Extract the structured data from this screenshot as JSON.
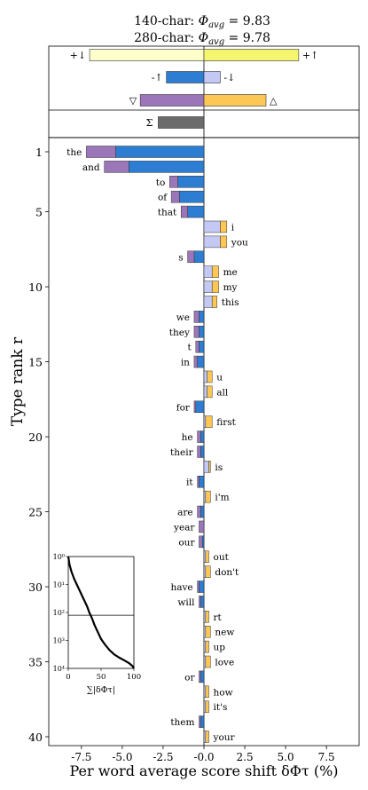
{
  "chart_data": {
    "type": "bar",
    "title_lines": [
      "140-char: Φavg = 9.83",
      "280-char: Φavg = 9.78"
    ],
    "title_parts": [
      {
        "prefix": "140-char: ",
        "symbol": "Φ",
        "sub": "avg",
        "suffix": " = 9.83"
      },
      {
        "prefix": "280-char: ",
        "symbol": "Φ",
        "sub": "avg",
        "suffix": " = 9.78"
      }
    ],
    "xlabel": "Per word average score shift δΦτ (%)",
    "ylabel": "Type rank r",
    "xlim": [
      -9.5,
      9.5
    ],
    "xticks": [
      -7.5,
      -5.0,
      -2.5,
      0.0,
      2.5,
      5.0,
      7.5
    ],
    "xtick_labels": [
      "-7.5",
      "-5.0",
      "-2.5",
      "-0.0",
      "2.5",
      "5.0",
      "7.5"
    ],
    "yticks": [
      1,
      5,
      10,
      15,
      20,
      25,
      30,
      35,
      40
    ],
    "colors": {
      "neg_purple": "#9b77b9",
      "neg_blue": "#2d7dd2",
      "pos_lightblue": "#c4c8f4",
      "pos_orange": "#fdc756",
      "yellow_light": "#ffffcc",
      "yellow": "#f6f56e",
      "sum": "#6b6b6b"
    },
    "summary": [
      {
        "label": "+↓",
        "right_label": "+↑",
        "left": -7.0,
        "right": 5.8,
        "kind": "split"
      },
      {
        "label": "-↑",
        "right_label": "-↓",
        "left": -2.3,
        "right": 1.0,
        "kind": "split2"
      },
      {
        "label": "▽",
        "right_label": "△",
        "left": -3.9,
        "right": 3.8,
        "kind": "split3"
      },
      {
        "label": "Σ",
        "value": -2.8,
        "kind": "sum"
      }
    ],
    "words": [
      {
        "rank": 1,
        "word": "the",
        "purple": 1.8,
        "blue": 5.4
      },
      {
        "rank": 2,
        "word": "and",
        "purple": 1.5,
        "blue": 4.6
      },
      {
        "rank": 3,
        "word": "to",
        "purple": 0.5,
        "blue": 1.6
      },
      {
        "rank": 4,
        "word": "of",
        "purple": 0.5,
        "blue": 1.5
      },
      {
        "rank": 5,
        "word": "that",
        "purple": 0.4,
        "blue": 1.0
      },
      {
        "rank": 6,
        "word": "i",
        "lightblue": 1.0,
        "orange": 0.4
      },
      {
        "rank": 7,
        "word": "you",
        "lightblue": 1.0,
        "orange": 0.4
      },
      {
        "rank": 8,
        "word": "s",
        "purple": 0.4,
        "blue": 0.6
      },
      {
        "rank": 9,
        "word": "me",
        "lightblue": 0.5,
        "orange": 0.4
      },
      {
        "rank": 10,
        "word": "my",
        "lightblue": 0.5,
        "orange": 0.4
      },
      {
        "rank": 11,
        "word": "this",
        "lightblue": 0.5,
        "orange": 0.3
      },
      {
        "rank": 12,
        "word": "we",
        "purple": 0.3,
        "blue": 0.3
      },
      {
        "rank": 13,
        "word": "they",
        "purple": 0.3,
        "blue": 0.3
      },
      {
        "rank": 14,
        "word": "t",
        "purple": 0.2,
        "blue": 0.3
      },
      {
        "rank": 15,
        "word": "in",
        "purple": 0.2,
        "blue": 0.4
      },
      {
        "rank": 16,
        "word": "u",
        "lightblue": 0.2,
        "orange": 0.3
      },
      {
        "rank": 17,
        "word": "all",
        "lightblue": 0.2,
        "orange": 0.3
      },
      {
        "rank": 18,
        "word": "for",
        "purple": 0.1,
        "blue": 0.5
      },
      {
        "rank": 19,
        "word": "first",
        "lightblue": 0.1,
        "orange": 0.4
      },
      {
        "rank": 20,
        "word": "he",
        "purple": 0.2,
        "blue": 0.2
      },
      {
        "rank": 21,
        "word": "their",
        "purple": 0.2,
        "blue": 0.2
      },
      {
        "rank": 22,
        "word": "is",
        "lightblue": 0.3,
        "orange": 0.1
      },
      {
        "rank": 23,
        "word": "it",
        "purple": 0.1,
        "blue": 0.3
      },
      {
        "rank": 24,
        "word": "i'm",
        "lightblue": 0.1,
        "orange": 0.3
      },
      {
        "rank": 25,
        "word": "are",
        "purple": 0.2,
        "blue": 0.2
      },
      {
        "rank": 26,
        "word": "year",
        "purple": 0.3,
        "blue": 0.0
      },
      {
        "rank": 27,
        "word": "our",
        "purple": 0.2,
        "blue": 0.1
      },
      {
        "rank": 28,
        "word": "out",
        "lightblue": 0.1,
        "orange": 0.2
      },
      {
        "rank": 29,
        "word": "don't",
        "lightblue": 0.1,
        "orange": 0.3
      },
      {
        "rank": 30,
        "word": "have",
        "purple": 0.1,
        "blue": 0.3
      },
      {
        "rank": 31,
        "word": "will",
        "purple": 0.1,
        "blue": 0.2
      },
      {
        "rank": 32,
        "word": "rt",
        "lightblue": 0.1,
        "orange": 0.2
      },
      {
        "rank": 33,
        "word": "new",
        "lightblue": 0.1,
        "orange": 0.3
      },
      {
        "rank": 34,
        "word": "up",
        "lightblue": 0.1,
        "orange": 0.2
      },
      {
        "rank": 35,
        "word": "love",
        "lightblue": 0.1,
        "orange": 0.3
      },
      {
        "rank": 36,
        "word": "or",
        "purple": 0.1,
        "blue": 0.2
      },
      {
        "rank": 37,
        "word": "how",
        "lightblue": 0.1,
        "orange": 0.2
      },
      {
        "rank": 38,
        "word": "it's",
        "lightblue": 0.1,
        "orange": 0.2
      },
      {
        "rank": 39,
        "word": "them",
        "purple": 0.1,
        "blue": 0.2
      },
      {
        "rank": 40,
        "word": "your",
        "lightblue": 0.1,
        "orange": 0.2
      }
    ],
    "inset": {
      "xlabel": "∑|δΦτ|",
      "xticks": [
        0,
        50,
        100
      ],
      "ytick_labels": [
        "10⁰",
        "10¹",
        "10²",
        "10³",
        "10⁴"
      ],
      "ylim_log": [
        0,
        4
      ],
      "hline_log": 2.1,
      "curve": [
        [
          0,
          0.0
        ],
        [
          2,
          0.3
        ],
        [
          5,
          0.55
        ],
        [
          9,
          0.8
        ],
        [
          13,
          1.0
        ],
        [
          17,
          1.2
        ],
        [
          21,
          1.4
        ],
        [
          25,
          1.6
        ],
        [
          29,
          1.8
        ],
        [
          32,
          2.0
        ],
        [
          36,
          2.2
        ],
        [
          40,
          2.45
        ],
        [
          45,
          2.7
        ],
        [
          50,
          2.95
        ],
        [
          56,
          3.15
        ],
        [
          63,
          3.35
        ],
        [
          70,
          3.5
        ],
        [
          78,
          3.62
        ],
        [
          86,
          3.72
        ],
        [
          93,
          3.82
        ],
        [
          98,
          3.92
        ],
        [
          100,
          4.0
        ]
      ]
    }
  }
}
